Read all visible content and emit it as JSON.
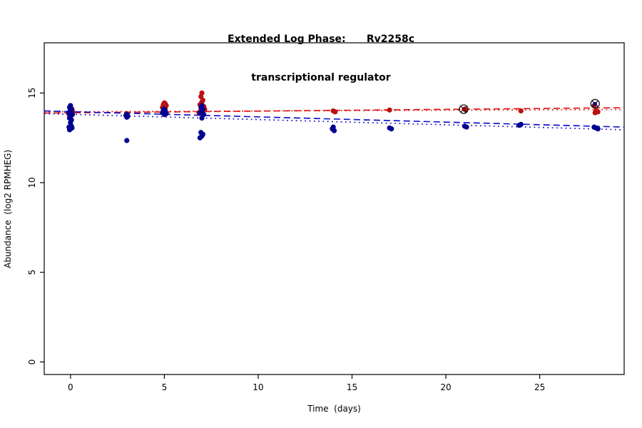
{
  "chart_data": {
    "type": "scatter",
    "title_line1": "Extended Log Phase:      Rv2258c",
    "title_line2": "transcriptional regulator",
    "xlabel": "Time  (days)",
    "ylabel": "Abundance  (log2 RPMHEG)",
    "xlim": [
      -1.4,
      29.5
    ],
    "ylim": [
      -0.7,
      17.8
    ],
    "xticks": [
      0,
      5,
      10,
      15,
      20,
      25
    ],
    "yticks": [
      0,
      5,
      10,
      15
    ],
    "grid": false,
    "legend": "none",
    "colors": {
      "red_points": "#bb1111",
      "blue_points": "#000090",
      "red_line": "#e01818",
      "blue_line": "#1414cc",
      "flag_marker": "#111111",
      "box": "#000000"
    },
    "series": [
      {
        "name": "red-group",
        "color": "#bb1111",
        "points": [
          [
            0.0,
            14.05
          ],
          [
            0.05,
            13.95
          ],
          [
            -0.05,
            13.9
          ],
          [
            0.1,
            14.0
          ],
          [
            0.0,
            13.85
          ],
          [
            0.08,
            14.1
          ],
          [
            -0.08,
            13.8
          ],
          [
            3.0,
            13.85
          ],
          [
            5.0,
            14.45
          ],
          [
            5.05,
            14.4
          ],
          [
            4.95,
            14.35
          ],
          [
            5.1,
            14.3
          ],
          [
            5.0,
            14.25
          ],
          [
            4.9,
            14.2
          ],
          [
            5.05,
            14.15
          ],
          [
            7.0,
            15.0
          ],
          [
            6.95,
            14.8
          ],
          [
            7.05,
            14.6
          ],
          [
            7.0,
            14.5
          ],
          [
            6.9,
            14.35
          ],
          [
            7.1,
            14.25
          ],
          [
            7.0,
            14.15
          ],
          [
            6.95,
            14.05
          ],
          [
            7.05,
            13.95
          ],
          [
            7.0,
            13.85
          ],
          [
            7.15,
            14.1
          ],
          [
            6.85,
            13.9
          ],
          [
            14.0,
            14.0
          ],
          [
            14.1,
            13.95
          ],
          [
            17.0,
            14.05
          ],
          [
            21.0,
            14.1
          ],
          [
            21.05,
            14.05
          ],
          [
            24.0,
            14.0
          ],
          [
            27.9,
            14.3
          ],
          [
            28.0,
            14.0
          ],
          [
            28.1,
            13.95
          ],
          [
            27.95,
            13.9
          ]
        ]
      },
      {
        "name": "blue-group",
        "color": "#000090",
        "points": [
          [
            0.0,
            14.3
          ],
          [
            -0.05,
            14.2
          ],
          [
            0.05,
            14.1
          ],
          [
            0.0,
            14.0
          ],
          [
            -0.1,
            13.9
          ],
          [
            0.1,
            13.8
          ],
          [
            0.0,
            13.7
          ],
          [
            -0.05,
            13.6
          ],
          [
            0.05,
            13.5
          ],
          [
            0.0,
            13.35
          ],
          [
            -0.08,
            13.1
          ],
          [
            0.08,
            13.05
          ],
          [
            0.0,
            13.0
          ],
          [
            -0.05,
            12.95
          ],
          [
            0.05,
            13.15
          ],
          [
            3.0,
            13.8
          ],
          [
            2.95,
            13.75
          ],
          [
            3.05,
            13.7
          ],
          [
            3.0,
            13.65
          ],
          [
            3.0,
            12.35
          ],
          [
            5.0,
            14.1
          ],
          [
            4.95,
            14.05
          ],
          [
            5.05,
            14.0
          ],
          [
            5.0,
            13.95
          ],
          [
            4.9,
            13.9
          ],
          [
            5.1,
            13.85
          ],
          [
            5.0,
            13.8
          ],
          [
            7.0,
            14.3
          ],
          [
            6.95,
            14.2
          ],
          [
            7.05,
            14.1
          ],
          [
            7.0,
            14.0
          ],
          [
            6.9,
            13.9
          ],
          [
            7.1,
            13.8
          ],
          [
            7.0,
            13.6
          ],
          [
            6.95,
            12.8
          ],
          [
            7.05,
            12.7
          ],
          [
            7.0,
            12.6
          ],
          [
            6.9,
            12.5
          ],
          [
            14.0,
            13.1
          ],
          [
            13.95,
            13.0
          ],
          [
            14.05,
            12.9
          ],
          [
            17.0,
            13.05
          ],
          [
            17.1,
            13.0
          ],
          [
            21.0,
            13.15
          ],
          [
            21.1,
            13.1
          ],
          [
            24.0,
            13.25
          ],
          [
            23.9,
            13.2
          ],
          [
            27.9,
            13.1
          ],
          [
            28.0,
            13.05
          ],
          [
            28.1,
            13.0
          ]
        ]
      }
    ],
    "flagged_points": [
      {
        "x": 20.95,
        "y": 14.1,
        "color": "#8b0000"
      },
      {
        "x": 27.95,
        "y": 14.4,
        "color": "#000090"
      }
    ],
    "trend_lines": [
      {
        "name": "red-dashed",
        "color": "#e01818",
        "style": "dashed",
        "from": [
          -1.4,
          13.88
        ],
        "to": [
          29.5,
          14.18
        ]
      },
      {
        "name": "red-dotted",
        "color": "#e01818",
        "style": "dotted",
        "from": [
          -1.4,
          13.95
        ],
        "to": [
          29.5,
          14.08
        ]
      },
      {
        "name": "blue-dashed",
        "color": "#1414cc",
        "style": "dashed",
        "from": [
          -1.4,
          14.0
        ],
        "to": [
          29.5,
          13.1
        ]
      },
      {
        "name": "blue-dotted",
        "color": "#1414cc",
        "style": "dotted",
        "from": [
          -1.4,
          13.85
        ],
        "to": [
          29.5,
          12.95
        ]
      }
    ]
  }
}
